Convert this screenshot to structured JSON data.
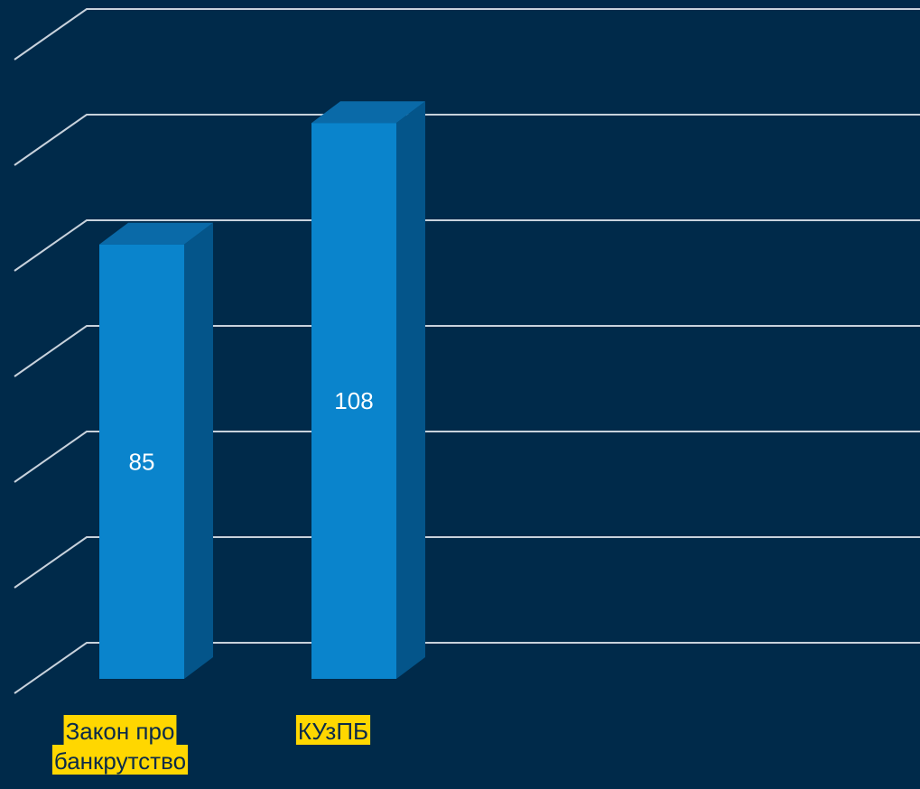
{
  "chart_data": {
    "type": "bar",
    "style": "3d-column",
    "categories": [
      [
        "Закон про",
        "банкрутство"
      ],
      [
        "КУзПБ"
      ]
    ],
    "values": [
      85,
      108
    ],
    "data_labels": [
      "85",
      "108"
    ],
    "ylim": [
      0,
      140
    ],
    "ytick_step": 20,
    "grid": true,
    "legend": "none",
    "title": "",
    "xlabel": "",
    "ylabel": ""
  },
  "colors": {
    "background": "#002a4a",
    "gridline": "#c8d2dc",
    "bar_front": "#0a84cc",
    "bar_side": "#04558a",
    "bar_top": "#0a6aa8",
    "category_label_background": "#ffd700",
    "category_label_text": "#0a2a4a",
    "data_label_text": "#ffffff"
  }
}
